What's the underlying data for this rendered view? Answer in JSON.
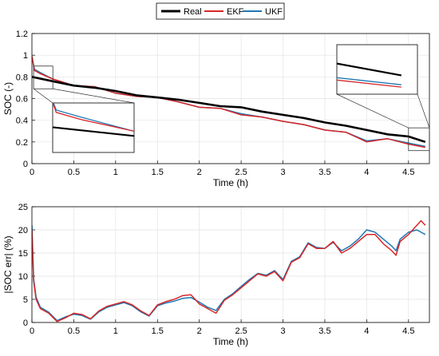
{
  "legend": {
    "entries": [
      {
        "label": "Real",
        "color": "#000000"
      },
      {
        "label": "EKF",
        "color": "#d62728"
      },
      {
        "label": "UKF",
        "color": "#1f77b4"
      }
    ],
    "placement": "top-center"
  },
  "chart_data": [
    {
      "type": "line",
      "xlabel": "Time (h)",
      "ylabel": "SOC (-)",
      "xlim": [
        0,
        4.75
      ],
      "ylim": [
        0,
        1.2
      ],
      "xticks": [
        "0",
        "0.5",
        "1",
        "1.5",
        "2",
        "2.5",
        "3",
        "3.5",
        "4",
        "4.5"
      ],
      "yticks": [
        "0",
        "0.2",
        "0.4",
        "0.6",
        "0.8",
        "1",
        "1.2"
      ],
      "grid": true,
      "series": [
        {
          "name": "Real",
          "color": "#000000",
          "x": [
            0,
            0.25,
            0.5,
            0.75,
            1.0,
            1.25,
            1.5,
            1.75,
            2.0,
            2.25,
            2.5,
            2.75,
            3.0,
            3.25,
            3.5,
            3.75,
            4.0,
            4.25,
            4.5,
            4.7
          ],
          "y": [
            0.8,
            0.76,
            0.72,
            0.7,
            0.67,
            0.63,
            0.61,
            0.59,
            0.56,
            0.53,
            0.52,
            0.48,
            0.45,
            0.42,
            0.38,
            0.35,
            0.31,
            0.27,
            0.25,
            0.2
          ]
        },
        {
          "name": "EKF",
          "color": "#d62728",
          "x": [
            0,
            0.03,
            0.1,
            0.25,
            0.5,
            0.75,
            1.0,
            1.25,
            1.5,
            1.75,
            2.0,
            2.25,
            2.5,
            2.75,
            3.0,
            3.25,
            3.5,
            3.75,
            4.0,
            4.25,
            4.5,
            4.7
          ],
          "y": [
            0.99,
            0.86,
            0.83,
            0.78,
            0.72,
            0.71,
            0.65,
            0.62,
            0.61,
            0.57,
            0.52,
            0.51,
            0.45,
            0.43,
            0.39,
            0.36,
            0.31,
            0.29,
            0.2,
            0.23,
            0.18,
            0.15
          ]
        },
        {
          "name": "UKF",
          "color": "#1f77b4",
          "x": [
            0,
            0.03,
            0.1,
            0.25,
            0.5,
            0.75,
            1.0,
            1.25,
            1.5,
            1.75,
            2.0,
            2.25,
            2.5,
            2.75,
            3.0,
            3.25,
            3.5,
            3.75,
            4.0,
            4.25,
            4.5,
            4.7
          ],
          "y": [
            0.99,
            0.87,
            0.84,
            0.78,
            0.72,
            0.71,
            0.65,
            0.62,
            0.61,
            0.57,
            0.52,
            0.51,
            0.46,
            0.43,
            0.39,
            0.36,
            0.31,
            0.29,
            0.21,
            0.23,
            0.19,
            0.16
          ]
        }
      ]
    },
    {
      "type": "line",
      "xlabel": "Time (h)",
      "ylabel": "|SOC err| (%)",
      "xlim": [
        0,
        4.75
      ],
      "ylim": [
        0,
        25
      ],
      "xticks": [
        "0",
        "0.5",
        "1",
        "1.5",
        "2",
        "2.5",
        "3",
        "3.5",
        "4",
        "4.5"
      ],
      "yticks": [
        "0",
        "5",
        "10",
        "15",
        "20",
        "25"
      ],
      "grid": true,
      "series": [
        {
          "name": "EKF",
          "color": "#d62728",
          "x": [
            0,
            0.02,
            0.05,
            0.1,
            0.2,
            0.3,
            0.4,
            0.5,
            0.6,
            0.7,
            0.8,
            0.9,
            1.0,
            1.1,
            1.2,
            1.3,
            1.4,
            1.5,
            1.6,
            1.7,
            1.8,
            1.9,
            2.0,
            2.1,
            2.2,
            2.3,
            2.4,
            2.5,
            2.6,
            2.7,
            2.8,
            2.9,
            3.0,
            3.1,
            3.2,
            3.3,
            3.4,
            3.5,
            3.6,
            3.7,
            3.8,
            3.9,
            4.0,
            4.1,
            4.2,
            4.3,
            4.35,
            4.4,
            4.5,
            4.6,
            4.65,
            4.7
          ],
          "y": [
            20,
            9,
            5,
            3,
            2,
            0.2,
            1,
            2,
            1.7,
            0.8,
            2.5,
            3.5,
            4,
            4.5,
            3.8,
            2.5,
            1.5,
            3.8,
            4.5,
            5,
            5.8,
            6,
            4,
            3,
            2,
            4.8,
            6,
            7.5,
            9,
            10.5,
            10,
            11,
            9,
            13,
            14,
            17,
            16,
            16,
            17.5,
            15,
            16,
            17.5,
            19,
            19,
            17,
            15.5,
            14.5,
            17.5,
            19,
            21,
            22,
            21
          ]
        },
        {
          "name": "UKF",
          "color": "#1f77b4",
          "x": [
            0,
            0.02,
            0.05,
            0.1,
            0.2,
            0.3,
            0.4,
            0.5,
            0.6,
            0.7,
            0.8,
            0.9,
            1.0,
            1.1,
            1.2,
            1.3,
            1.4,
            1.5,
            1.6,
            1.7,
            1.8,
            1.9,
            2.0,
            2.1,
            2.2,
            2.3,
            2.4,
            2.5,
            2.6,
            2.7,
            2.8,
            2.9,
            3.0,
            3.1,
            3.2,
            3.3,
            3.4,
            3.5,
            3.6,
            3.7,
            3.8,
            3.9,
            4.0,
            4.1,
            4.2,
            4.3,
            4.35,
            4.4,
            4.5,
            4.6,
            4.65,
            4.7
          ],
          "y": [
            21,
            9.5,
            5.5,
            3.3,
            2.2,
            0.4,
            1.2,
            1.8,
            1.5,
            0.7,
            2.3,
            3.3,
            3.8,
            4.3,
            3.6,
            2.3,
            1.4,
            3.6,
            4.2,
            4.6,
            5.2,
            5.4,
            4.4,
            3.3,
            2.6,
            5,
            6.2,
            7.8,
            9.3,
            10.6,
            10.2,
            11.2,
            9.3,
            13.2,
            14.2,
            17.2,
            16.2,
            16,
            17.3,
            15.5,
            16.5,
            18,
            20,
            19.5,
            18,
            16.5,
            15.5,
            18,
            19.5,
            20,
            19.5,
            19
          ]
        }
      ]
    }
  ]
}
